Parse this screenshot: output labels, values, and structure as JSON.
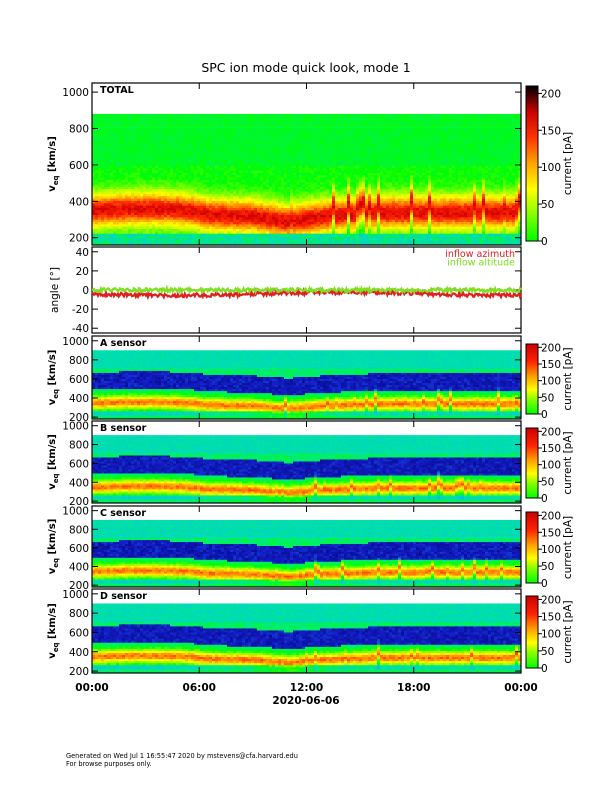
{
  "title": "SPC ion mode quick look, mode 1",
  "xaxis": {
    "date_label": "2020-06-06",
    "tick_labels": [
      "00:00",
      "06:00",
      "12:00",
      "18:00",
      "00:00"
    ],
    "range_hours": [
      0,
      24
    ]
  },
  "footer": {
    "generated": "Generated on Wed Jul  1 16:55:47 2020 by mstevens@cfa.harvard.edu",
    "note": "For browse purposes only."
  },
  "colors": {
    "azimuth": "#e02020",
    "altitude": "#7ee020",
    "colorbar": [
      "#00ff00",
      "#7fff00",
      "#ffff00",
      "#ffa500",
      "#ff3300",
      "#cc0000",
      "#000000"
    ]
  },
  "chart_data": [
    {
      "type": "heatmap",
      "panel_label": "TOTAL",
      "ylabel_main": "v",
      "ylabel_sub": "eq",
      "ylabel_unit": "[km/s]",
      "ylim": [
        160,
        1050
      ],
      "yticks": [
        200,
        400,
        600,
        800,
        1000
      ],
      "colorbar_label": "current [pA]",
      "colorbar_range": [
        0,
        210
      ],
      "colorbar_ticks": [
        0,
        50,
        100,
        150,
        200
      ],
      "background_level_pA": 30,
      "data_vmax_kms": 880,
      "core_speed_kms": {
        "hours": [
          0,
          2,
          4,
          5.5,
          6.5,
          9,
          11,
          13,
          16,
          20,
          24
        ],
        "values": [
          350,
          360,
          360,
          350,
          330,
          320,
          290,
          320,
          340,
          340,
          340
        ]
      }
    },
    {
      "type": "line",
      "ylabel": "angle [°]",
      "ylim": [
        -45,
        45
      ],
      "yticks": [
        -40,
        -20,
        0,
        20,
        40
      ],
      "series": [
        {
          "name": "inflow azimuth",
          "mean_deg": -4
        },
        {
          "name": "inflow altitude",
          "mean_deg": 0
        }
      ]
    },
    {
      "type": "heatmap",
      "panel_label": "A sensor",
      "ylabel_main": "v",
      "ylabel_sub": "eq",
      "ylabel_unit": "[km/s]",
      "ylim": [
        180,
        1050
      ],
      "yticks": [
        200,
        400,
        600,
        800,
        1000
      ],
      "colorbar_label": "current [pA]",
      "colorbar_range": [
        0,
        210
      ],
      "colorbar_ticks": [
        0,
        50,
        100,
        150,
        200
      ]
    },
    {
      "type": "heatmap",
      "panel_label": "B sensor",
      "ylabel_main": "v",
      "ylabel_sub": "eq",
      "ylabel_unit": "[km/s]",
      "ylim": [
        180,
        1050
      ],
      "yticks": [
        200,
        400,
        600,
        800,
        1000
      ],
      "colorbar_label": "current [pA]",
      "colorbar_range": [
        0,
        210
      ],
      "colorbar_ticks": [
        0,
        50,
        100,
        150,
        200
      ]
    },
    {
      "type": "heatmap",
      "panel_label": "C sensor",
      "ylabel_main": "v",
      "ylabel_sub": "eq",
      "ylabel_unit": "[km/s]",
      "ylim": [
        180,
        1050
      ],
      "yticks": [
        200,
        400,
        600,
        800,
        1000
      ],
      "colorbar_label": "current [pA]",
      "colorbar_range": [
        0,
        210
      ],
      "colorbar_ticks": [
        0,
        50,
        100,
        150,
        200
      ]
    },
    {
      "type": "heatmap",
      "panel_label": "D sensor",
      "ylabel_main": "v",
      "ylabel_sub": "eq",
      "ylabel_unit": "[km/s]",
      "ylim": [
        180,
        1050
      ],
      "yticks": [
        200,
        400,
        600,
        800,
        1000
      ],
      "colorbar_label": "current [pA]",
      "colorbar_range": [
        0,
        210
      ],
      "colorbar_ticks": [
        0,
        50,
        100,
        150,
        200
      ]
    }
  ]
}
